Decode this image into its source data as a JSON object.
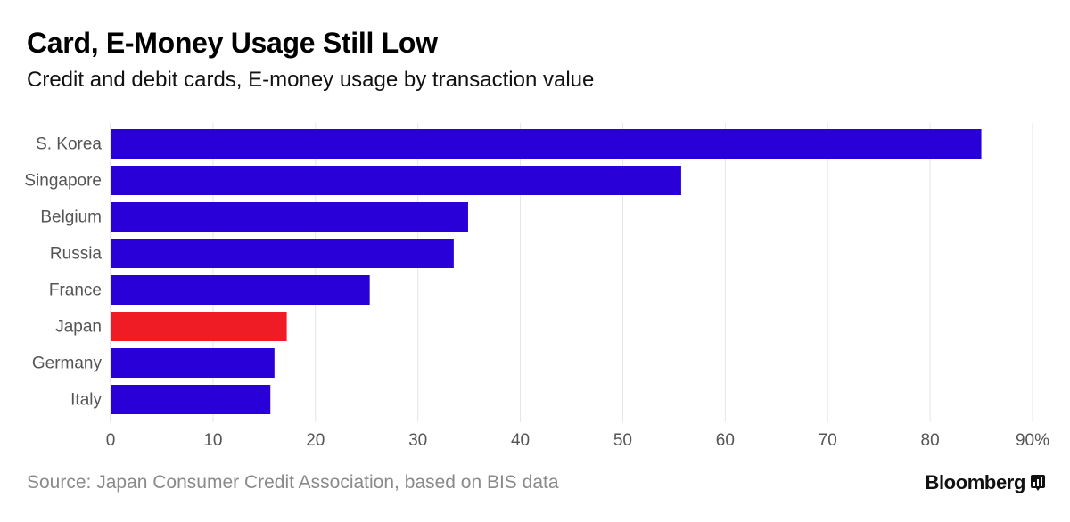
{
  "header": {
    "title": "Card, E-Money Usage Still Low",
    "subtitle": "Credit and debit cards, E-money usage by transaction value"
  },
  "footer": {
    "source": "Source: Japan Consumer Credit Association, based on BIS data",
    "brand": "Bloomberg"
  },
  "colors": {
    "bar": "#2a00d9",
    "highlight": "#ef1c25",
    "grid": "#e6e6e6",
    "axis_text": "#555555"
  },
  "chart_data": {
    "type": "bar",
    "orientation": "horizontal",
    "title": "Card, E-Money Usage Still Low",
    "subtitle": "Credit and debit cards, E-money usage by transaction value",
    "categories": [
      "S. Korea",
      "Singapore",
      "Belgium",
      "Russia",
      "France",
      "Japan",
      "Germany",
      "Italy"
    ],
    "values": [
      85,
      55.7,
      34.9,
      33.5,
      25.3,
      17.2,
      16,
      15.6
    ],
    "highlight": "Japan",
    "xlim": [
      0,
      90
    ],
    "xticks": [
      "0",
      "10",
      "20",
      "30",
      "40",
      "50",
      "60",
      "70",
      "80",
      "90%"
    ],
    "xlabel": "",
    "ylabel": "",
    "grid": true
  }
}
